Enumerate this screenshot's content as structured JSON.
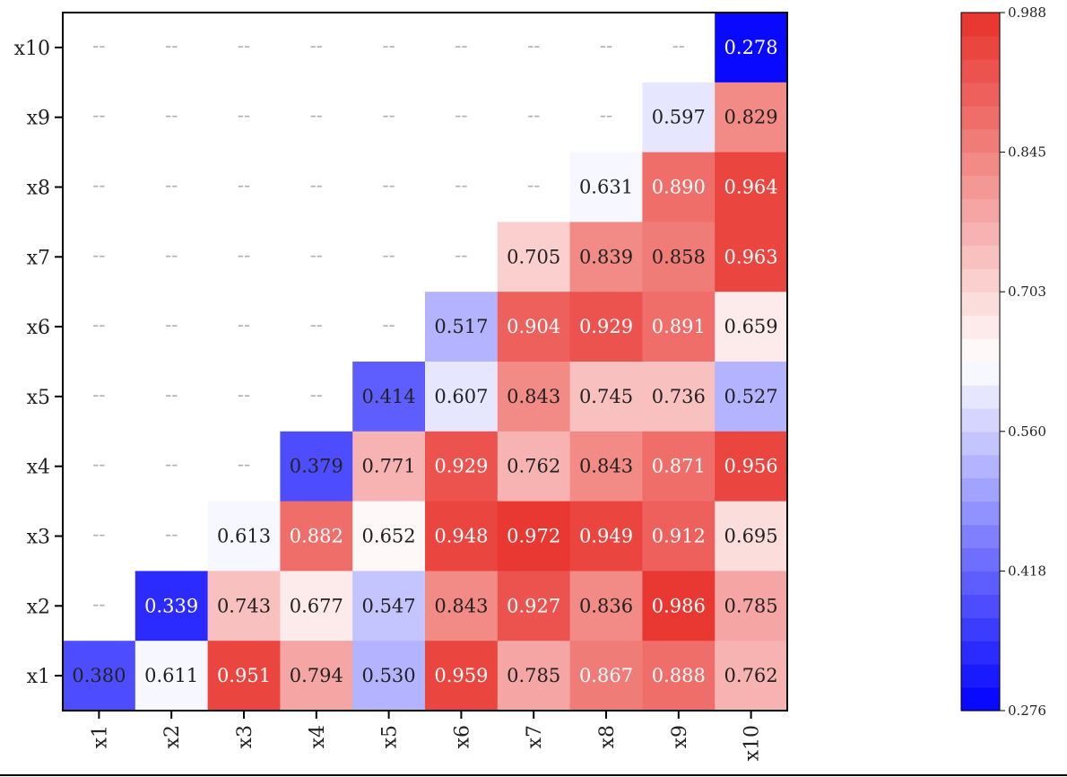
{
  "chart_data": {
    "type": "heatmap",
    "title": "",
    "xlabel": "",
    "ylabel": "",
    "x_labels": [
      "x1",
      "x2",
      "x3",
      "x4",
      "x5",
      "x6",
      "x7",
      "x8",
      "x9",
      "x10"
    ],
    "y_labels": [
      "x1",
      "x2",
      "x3",
      "x4",
      "x5",
      "x6",
      "x7",
      "x8",
      "x9",
      "x10"
    ],
    "empty_text": "--",
    "rows": [
      {
        "label": "x10",
        "values": [
          null,
          null,
          null,
          null,
          null,
          null,
          null,
          null,
          null,
          0.278
        ]
      },
      {
        "label": "x9",
        "values": [
          null,
          null,
          null,
          null,
          null,
          null,
          null,
          null,
          0.597,
          0.829
        ]
      },
      {
        "label": "x8",
        "values": [
          null,
          null,
          null,
          null,
          null,
          null,
          null,
          0.631,
          0.89,
          0.964
        ]
      },
      {
        "label": "x7",
        "values": [
          null,
          null,
          null,
          null,
          null,
          null,
          0.705,
          0.839,
          0.858,
          0.963
        ]
      },
      {
        "label": "x6",
        "values": [
          null,
          null,
          null,
          null,
          null,
          0.517,
          0.904,
          0.929,
          0.891,
          0.659
        ]
      },
      {
        "label": "x5",
        "values": [
          null,
          null,
          null,
          null,
          0.414,
          0.607,
          0.843,
          0.745,
          0.736,
          0.527
        ]
      },
      {
        "label": "x4",
        "values": [
          null,
          null,
          null,
          0.379,
          0.771,
          0.929,
          0.762,
          0.843,
          0.871,
          0.956
        ]
      },
      {
        "label": "x3",
        "values": [
          null,
          null,
          0.613,
          0.882,
          0.652,
          0.948,
          0.972,
          0.949,
          0.912,
          0.695
        ]
      },
      {
        "label": "x2",
        "values": [
          null,
          0.339,
          0.743,
          0.677,
          0.547,
          0.843,
          0.927,
          0.836,
          0.986,
          0.785
        ]
      },
      {
        "label": "x1",
        "values": [
          0.38,
          0.611,
          0.951,
          0.794,
          0.53,
          0.959,
          0.785,
          0.867,
          0.888,
          0.762
        ]
      }
    ],
    "colorbar": {
      "min": 0.276,
      "max": 0.988,
      "ticks": [
        "0.988",
        "0.845",
        "0.703",
        "0.560",
        "0.418",
        "0.276"
      ],
      "levels": 30,
      "colors": {
        "low": "#0000ff",
        "mid": "#ffffff",
        "high": "#e8302a"
      }
    },
    "grid": false
  }
}
